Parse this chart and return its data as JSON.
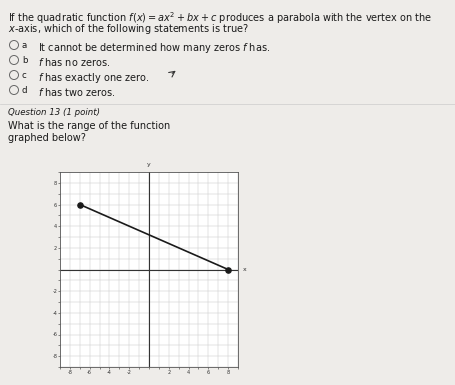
{
  "bg_color": "#eeece9",
  "text_color": "#1a1a1a",
  "q12_text_line1": "If the quadratic function $f(x) = ax^2 + bx + c$ produces a parabola with the vertex on the",
  "q12_text_line2": "$x$-axis, which of the following statements is true?",
  "options": [
    [
      "a",
      "It cannot be determined how many zeros $f$ has."
    ],
    [
      "b",
      "$f$ has no zeros."
    ],
    [
      "c",
      "$f$ has exactly one zero."
    ],
    [
      "d",
      "$f$ has two zeros."
    ]
  ],
  "q13_label": "Question 13 (1 point)",
  "q13_text_line1": "What is the range of the function",
  "q13_text_line2": "graphed below?",
  "graph": {
    "xlim": [
      -9,
      9
    ],
    "ylim": [
      -9,
      9
    ],
    "line_x": [
      -7,
      8
    ],
    "line_y": [
      6,
      0
    ],
    "line_color": "#1a1a1a",
    "line_width": 1.2,
    "dot_color": "#1a1a1a",
    "dot_size": 14,
    "graph_bg": "#ffffff",
    "grid_color": "#c8c8c8",
    "grid_lw": 0.35,
    "axis_color": "#333333",
    "axis_lw": 0.8
  }
}
